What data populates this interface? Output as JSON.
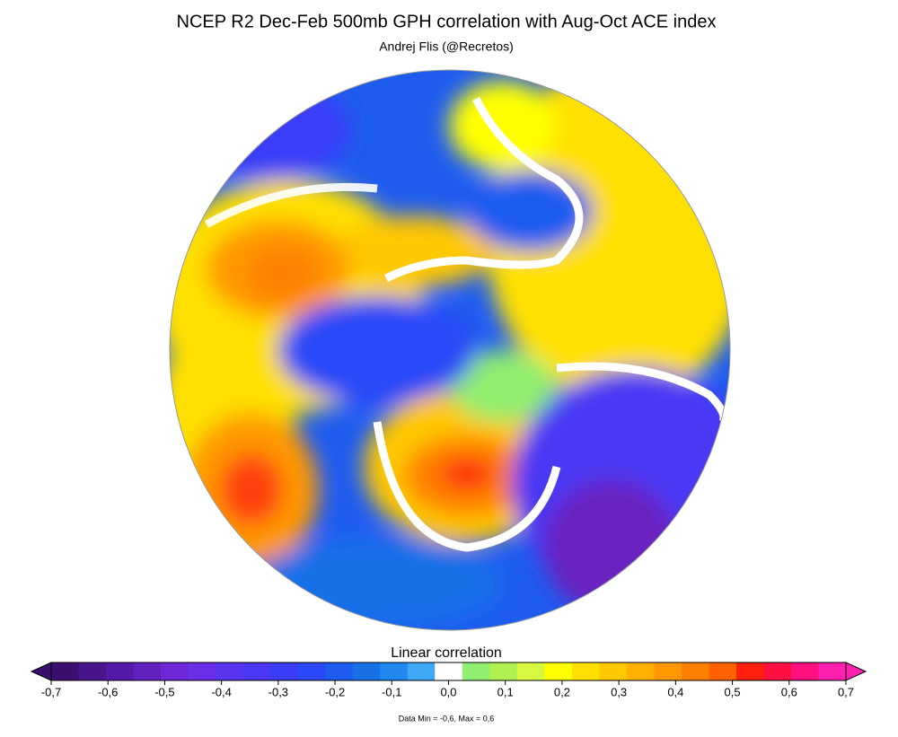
{
  "title": "NCEP R2   Dec-Feb 500mb GPH correlation with Aug-Oct ACE index",
  "subtitle": "Andrej Flis (@Recretos)",
  "colorbar": {
    "label": "Linear correlation",
    "lim": [
      -0.7,
      0.7
    ],
    "ticks": [
      {
        "value": -0.7,
        "label": "-0,7"
      },
      {
        "value": -0.6,
        "label": "-0,6"
      },
      {
        "value": -0.5,
        "label": "-0,5"
      },
      {
        "value": -0.4,
        "label": "-0,4"
      },
      {
        "value": -0.3,
        "label": "-0,3"
      },
      {
        "value": -0.2,
        "label": "-0,2"
      },
      {
        "value": -0.1,
        "label": "-0,1"
      },
      {
        "value": 0,
        "label": "0,0"
      },
      {
        "value": 0.1,
        "label": "0,1"
      },
      {
        "value": 0.2,
        "label": "0,2"
      },
      {
        "value": 0.3,
        "label": "0,3"
      },
      {
        "value": 0.4,
        "label": "0,4"
      },
      {
        "value": 0.5,
        "label": "0,5"
      },
      {
        "value": 0.6,
        "label": "0,6"
      },
      {
        "value": 0.7,
        "label": "0,7"
      }
    ],
    "colors": [
      "#3b0f70",
      "#48148c",
      "#5519a8",
      "#6220c0",
      "#6e28d8",
      "#6a30e8",
      "#5a34f0",
      "#4a38f4",
      "#3a3cf8",
      "#2a48f8",
      "#1e5cf0",
      "#1870e8",
      "#2088f0",
      "#40a8f8",
      "#ffffff",
      "#90ee70",
      "#b0f050",
      "#d8f840",
      "#ffff00",
      "#ffe000",
      "#ffc800",
      "#ffb000",
      "#ff9800",
      "#ff8000",
      "#ff6000",
      "#ff2010",
      "#ff1040",
      "#ff1080",
      "#ff20b0"
    ],
    "under_color": "#3b0f70",
    "over_color": "#ff20b0"
  },
  "note": "Data Min = -0,6, Max = 0,6"
}
